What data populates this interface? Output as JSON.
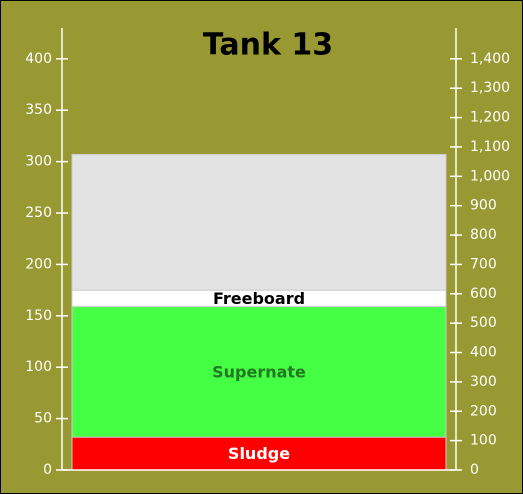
{
  "chart_data": {
    "type": "tank",
    "title": "Tank 13",
    "series": [
      {
        "name": "Sludge",
        "color": "#ff0000",
        "label_color": "#ffffff",
        "values": [
          32
        ]
      },
      {
        "name": "Supernate",
        "color": "#44ff44",
        "label_color": "#227722",
        "values": [
          127
        ]
      },
      {
        "name": "Freeboard",
        "color": "#ffffff",
        "label_color": "#000000",
        "values": [
          16
        ]
      },
      {
        "color": "#e3e3e3",
        "values": [
          132
        ]
      }
    ],
    "ylim": [
      0,
      430
    ],
    "yticks": [
      0,
      50,
      100,
      150,
      200,
      250,
      300,
      350,
      400
    ],
    "y2lim": [
      0,
      1505
    ],
    "y2ticks": [
      0,
      100,
      200,
      300,
      400,
      500,
      600,
      700,
      800,
      900,
      {
        "value": 1000,
        "label": "1,000"
      },
      {
        "value": 1100,
        "label": "1,100"
      },
      {
        "value": 1200,
        "label": "1,200"
      },
      {
        "value": 1300,
        "label": "1,300"
      },
      {
        "value": 1400,
        "label": "1,400"
      }
    ]
  }
}
